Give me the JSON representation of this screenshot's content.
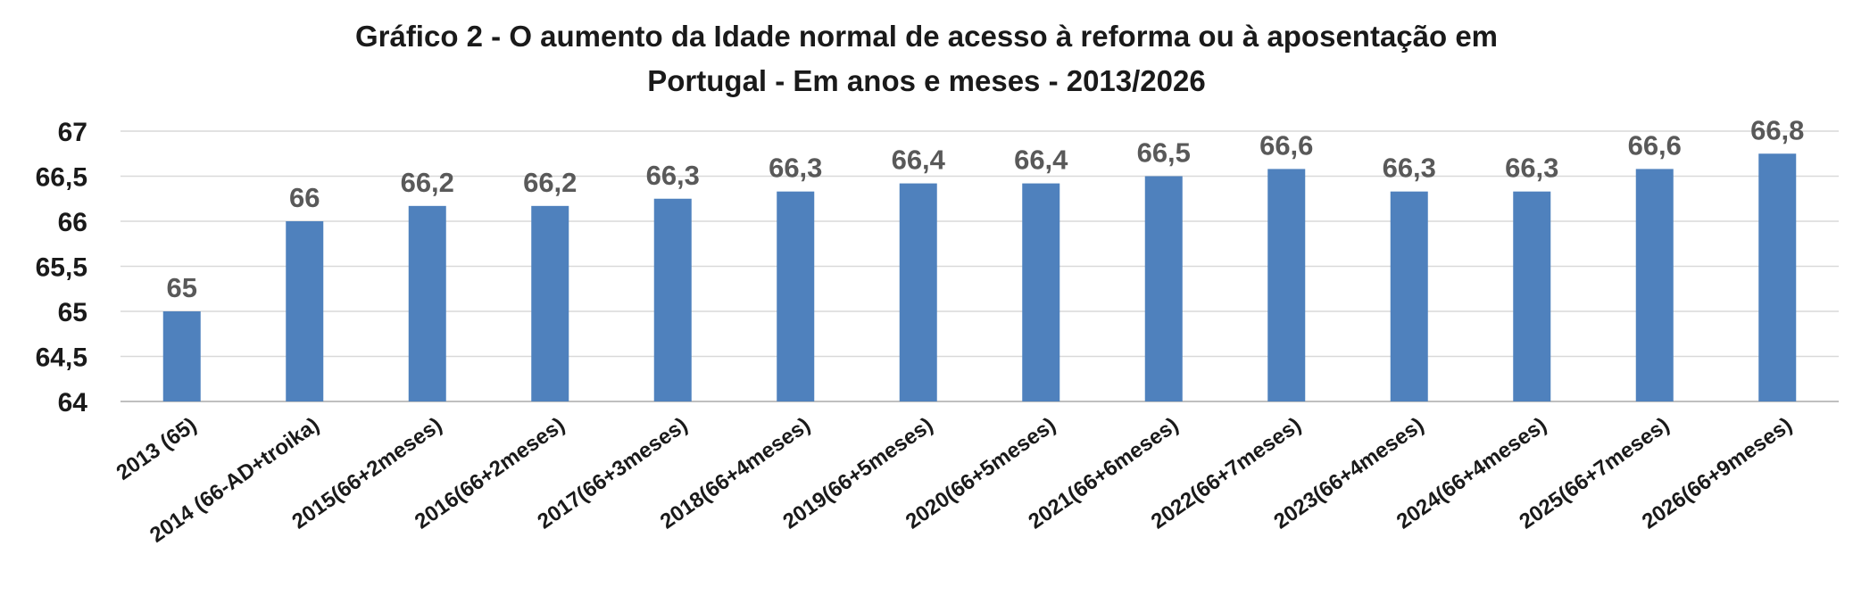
{
  "chart_data": {
    "type": "bar",
    "title_line1": "Gráfico 2 - O aumento da Idade normal de acesso à reforma ou à aposentação em",
    "title_line2": "Portugal - Em anos e meses - 2013/2026",
    "categories": [
      "2013 (65)",
      "2014 (66-AD+troika)",
      "2015(66+2meses)",
      "2016(66+2meses)",
      "2017(66+3meses)",
      "2018(66+4meses)",
      "2019(66+5meses)",
      "2020(66+5meses)",
      "2021(66+6meses)",
      "2022(66+7meses)",
      "2023(66+4meses)",
      "2024(66+4meses)",
      "2025(66+7meses)",
      "2026(66+9meses)"
    ],
    "values": [
      65,
      66,
      66.17,
      66.17,
      66.25,
      66.33,
      66.42,
      66.42,
      66.5,
      66.58,
      66.33,
      66.33,
      66.58,
      66.75
    ],
    "data_labels": [
      "65",
      "66",
      "66,2",
      "66,2",
      "66,3",
      "66,3",
      "66,4",
      "66,4",
      "66,5",
      "66,6",
      "66,3",
      "66,3",
      "66,6",
      "66,8"
    ],
    "ylim": [
      64,
      67
    ],
    "yticks": [
      64,
      64.5,
      65,
      65.5,
      66,
      66.5,
      67
    ],
    "ytick_labels": [
      "64",
      "64,5",
      "65",
      "65,5",
      "66",
      "66,5",
      "67"
    ],
    "grid": true,
    "legend": "none",
    "bar_color": "#4f81bd",
    "xlabel": "",
    "ylabel": ""
  }
}
